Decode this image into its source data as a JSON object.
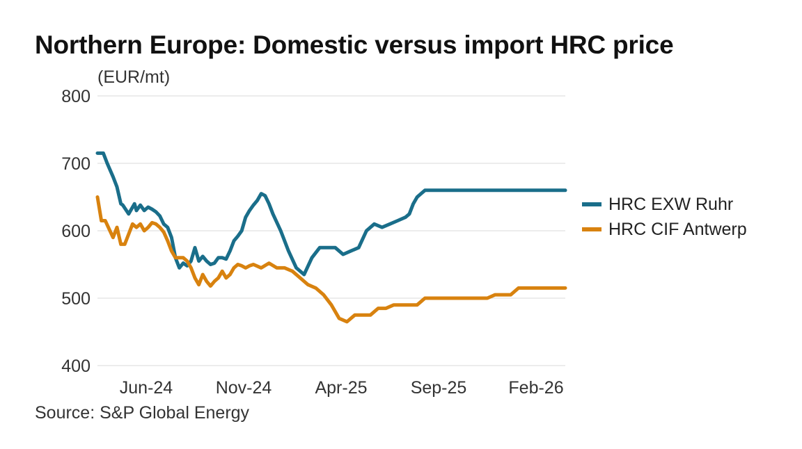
{
  "chart_data": {
    "type": "line",
    "title": "Northern Europe: Domestic versus import HRC price",
    "ylabel": "(EUR/mt)",
    "xlabel": "",
    "source": "Source: S&P Global Energy",
    "ylim": [
      400,
      800
    ],
    "yticks": [
      400,
      500,
      600,
      700,
      800
    ],
    "xlim": [
      0,
      24
    ],
    "xticks": [
      {
        "x": 2.5,
        "label": "Jun-24"
      },
      {
        "x": 7.5,
        "label": "Nov-24"
      },
      {
        "x": 12.5,
        "label": "Apr-25"
      },
      {
        "x": 17.5,
        "label": "Sep-25"
      },
      {
        "x": 22.5,
        "label": "Feb-26"
      }
    ],
    "grid": true,
    "legend_position": "right",
    "series": [
      {
        "name": "HRC EXW Ruhr",
        "color": "#1a6e8a",
        "x": [
          0,
          0.3,
          0.5,
          0.8,
          1.0,
          1.2,
          1.3,
          1.6,
          1.9,
          2.0,
          2.2,
          2.4,
          2.6,
          2.8,
          3.0,
          3.2,
          3.4,
          3.6,
          3.8,
          4.0,
          4.2,
          4.4,
          4.6,
          4.8,
          5.0,
          5.2,
          5.4,
          5.6,
          5.8,
          6.0,
          6.2,
          6.4,
          6.6,
          6.8,
          7.0,
          7.2,
          7.4,
          7.6,
          7.8,
          8.0,
          8.2,
          8.4,
          8.6,
          8.8,
          9.0,
          9.4,
          9.8,
          10.2,
          10.6,
          11.0,
          11.4,
          11.8,
          12.2,
          12.6,
          13.0,
          13.4,
          13.8,
          14.2,
          14.6,
          15.0,
          15.4,
          15.8,
          16.0,
          16.2,
          16.4,
          16.6,
          16.8,
          17.0,
          17.2,
          17.4,
          17.6,
          17.8,
          18.0,
          18.4,
          18.8,
          19.2,
          19.6,
          20.0,
          20.4,
          20.8,
          21.2,
          21.6,
          22.0,
          22.4,
          22.8,
          23.2,
          23.6,
          24.0
        ],
        "values": [
          715,
          715,
          700,
          680,
          665,
          640,
          638,
          625,
          640,
          630,
          638,
          630,
          635,
          632,
          628,
          622,
          610,
          605,
          590,
          560,
          545,
          552,
          548,
          555,
          575,
          555,
          562,
          555,
          550,
          552,
          560,
          560,
          558,
          570,
          585,
          592,
          600,
          620,
          630,
          638,
          645,
          655,
          652,
          640,
          625,
          600,
          570,
          545,
          535,
          560,
          575,
          575,
          575,
          565,
          570,
          575,
          600,
          610,
          605,
          610,
          615,
          620,
          625,
          640,
          650,
          655,
          660,
          660,
          660,
          660,
          660,
          660,
          660,
          660,
          660,
          660,
          660,
          660,
          660,
          660,
          660,
          660,
          660,
          660,
          660,
          660,
          660,
          660
        ]
      },
      {
        "name": "HRC CIF Antwerp",
        "color": "#d8820f",
        "x": [
          0,
          0.2,
          0.4,
          0.8,
          1.0,
          1.2,
          1.4,
          1.6,
          1.8,
          2.0,
          2.2,
          2.4,
          2.6,
          2.8,
          3.0,
          3.2,
          3.4,
          3.6,
          3.8,
          4.0,
          4.2,
          4.4,
          4.6,
          4.8,
          5.0,
          5.2,
          5.4,
          5.6,
          5.8,
          6.0,
          6.2,
          6.4,
          6.6,
          6.8,
          7.0,
          7.2,
          7.4,
          7.6,
          7.8,
          8.0,
          8.4,
          8.8,
          9.2,
          9.6,
          10.0,
          10.4,
          10.8,
          11.2,
          11.6,
          12.0,
          12.4,
          12.8,
          13.2,
          13.6,
          14.0,
          14.4,
          14.8,
          15.2,
          15.6,
          16.0,
          16.4,
          16.8,
          17.2,
          17.6,
          18.0,
          18.4,
          18.8,
          19.2,
          19.6,
          20.0,
          20.4,
          20.8,
          21.2,
          21.6,
          22.0,
          22.4,
          22.8,
          23.2,
          23.6,
          24.0
        ],
        "values": [
          650,
          615,
          615,
          590,
          605,
          580,
          580,
          595,
          610,
          605,
          610,
          600,
          605,
          612,
          610,
          605,
          598,
          585,
          570,
          560,
          560,
          560,
          555,
          545,
          530,
          520,
          535,
          525,
          518,
          525,
          530,
          540,
          530,
          535,
          545,
          550,
          548,
          545,
          548,
          550,
          545,
          552,
          545,
          545,
          540,
          530,
          520,
          515,
          505,
          490,
          470,
          465,
          475,
          475,
          475,
          485,
          485,
          490,
          490,
          490,
          490,
          500,
          500,
          500,
          500,
          500,
          500,
          500,
          500,
          500,
          505,
          505,
          505,
          515,
          515,
          515,
          515,
          515,
          515,
          515
        ]
      }
    ]
  }
}
